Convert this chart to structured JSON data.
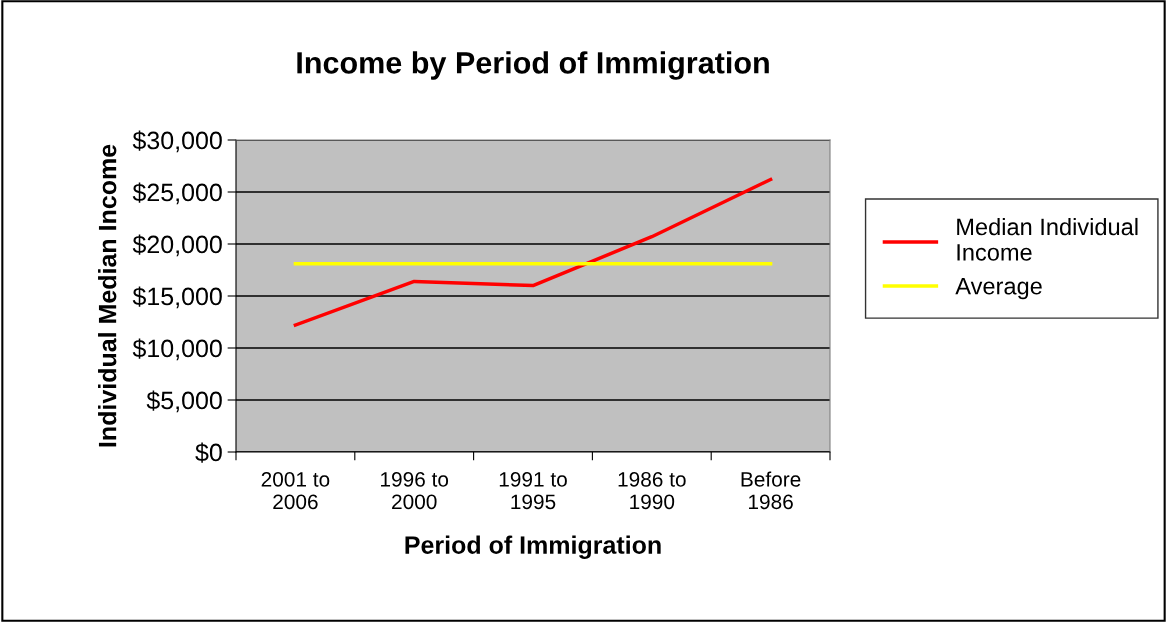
{
  "chart_data": {
    "type": "line",
    "title": "Income by Period of Immigration",
    "xlabel": "Period of Immigration",
    "ylabel": "Individual Median Income",
    "categories": [
      "2001 to\n2006",
      "1996 to\n2000",
      "1991 to\n1995",
      "1986 to\n1990",
      "Before\n1986"
    ],
    "series": [
      {
        "name": "Median Individual\nIncome",
        "color": "#ff0000",
        "values": [
          12200,
          16400,
          16000,
          20700,
          26200
        ]
      },
      {
        "name": "Average",
        "color": "#ffff00",
        "values": [
          18100,
          18100,
          18100,
          18100,
          18100
        ]
      }
    ],
    "ylim": [
      0,
      30000
    ],
    "yticks": [
      {
        "value": 0,
        "label": "$0"
      },
      {
        "value": 5000,
        "label": "$5,000"
      },
      {
        "value": 10000,
        "label": "$10,000"
      },
      {
        "value": 15000,
        "label": "$15,000"
      },
      {
        "value": 20000,
        "label": "$20,000"
      },
      {
        "value": 25000,
        "label": "$25,000"
      },
      {
        "value": 30000,
        "label": "$30,000"
      }
    ],
    "grid": "y",
    "legend": "right",
    "marker": "none",
    "line_style": "solid"
  }
}
